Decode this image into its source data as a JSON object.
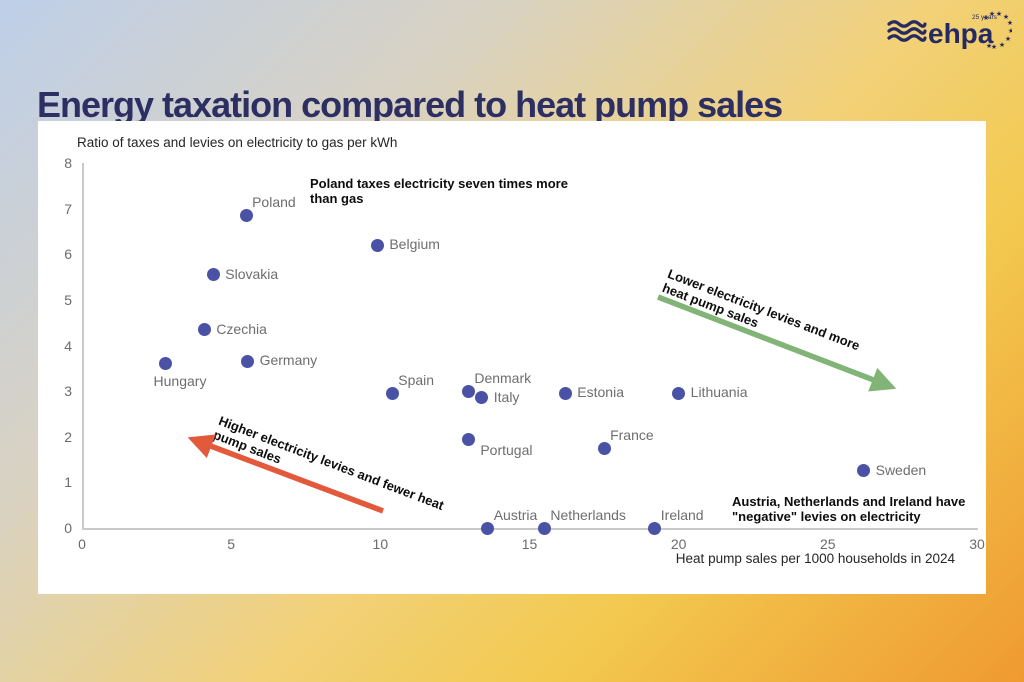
{
  "page": {
    "title": "Energy taxation compared to heat pump sales",
    "logo": {
      "text": "ehpa",
      "badge": "25 years"
    }
  },
  "chart_data": {
    "type": "scatter",
    "title": "Ratio of taxes and levies on electricity to gas per kWh",
    "xlabel": "Heat pump sales per 1000 households in 2024",
    "ylabel": "Ratio of taxes and levies on electricity to gas per kWh",
    "xlim": [
      0,
      30
    ],
    "ylim": [
      0,
      8
    ],
    "x_ticks": [
      0,
      5,
      10,
      15,
      20,
      25,
      30
    ],
    "y_ticks": [
      0,
      1,
      2,
      3,
      4,
      5,
      6,
      7,
      8
    ],
    "grid": false,
    "legend": "none",
    "point_color": "#4a52a5",
    "points": [
      {
        "label": "Poland",
        "x": 5.5,
        "y": 6.85,
        "label_pos": "above-right"
      },
      {
        "label": "Belgium",
        "x": 9.9,
        "y": 6.2,
        "label_pos": "right"
      },
      {
        "label": "Slovakia",
        "x": 4.4,
        "y": 5.55,
        "label_pos": "right"
      },
      {
        "label": "Czechia",
        "x": 4.1,
        "y": 4.35,
        "label_pos": "right"
      },
      {
        "label": "Hungary",
        "x": 2.8,
        "y": 3.6,
        "label_pos": "below"
      },
      {
        "label": "Germany",
        "x": 5.55,
        "y": 3.65,
        "label_pos": "right"
      },
      {
        "label": "Spain",
        "x": 10.4,
        "y": 2.95,
        "label_pos": "above-right"
      },
      {
        "label": "Denmark",
        "x": 12.95,
        "y": 3.0,
        "label_pos": "above-right"
      },
      {
        "label": "Italy",
        "x": 13.4,
        "y": 2.85,
        "label_pos": "right"
      },
      {
        "label": "Estonia",
        "x": 16.2,
        "y": 2.95,
        "label_pos": "right"
      },
      {
        "label": "Lithuania",
        "x": 20.0,
        "y": 2.95,
        "label_pos": "right"
      },
      {
        "label": "Portugal",
        "x": 12.95,
        "y": 1.95,
        "label_pos": "below-right"
      },
      {
        "label": "France",
        "x": 17.5,
        "y": 1.75,
        "label_pos": "above-right"
      },
      {
        "label": "Sweden",
        "x": 26.2,
        "y": 1.25,
        "label_pos": "right"
      },
      {
        "label": "Austria",
        "x": 13.6,
        "y": 0,
        "label_pos": "above-right"
      },
      {
        "label": "Netherlands",
        "x": 15.5,
        "y": 0,
        "label_pos": "above-right"
      },
      {
        "label": "Ireland",
        "x": 19.2,
        "y": 0,
        "label_pos": "above-right"
      }
    ],
    "annotations": [
      {
        "id": "poland-note",
        "text": "Poland taxes electricity seven times more than gas"
      },
      {
        "id": "negative-note",
        "text": "Austria, Netherlands and Ireland have \"negative\" levies on electricity"
      },
      {
        "id": "lower-note",
        "text": "Lower electricity levies and more heat pump sales",
        "arrow_color": "#83b477"
      },
      {
        "id": "higher-note",
        "text": "Higher electricity levies and fewer heat pump sales",
        "arrow_color": "#e2593b"
      }
    ]
  }
}
